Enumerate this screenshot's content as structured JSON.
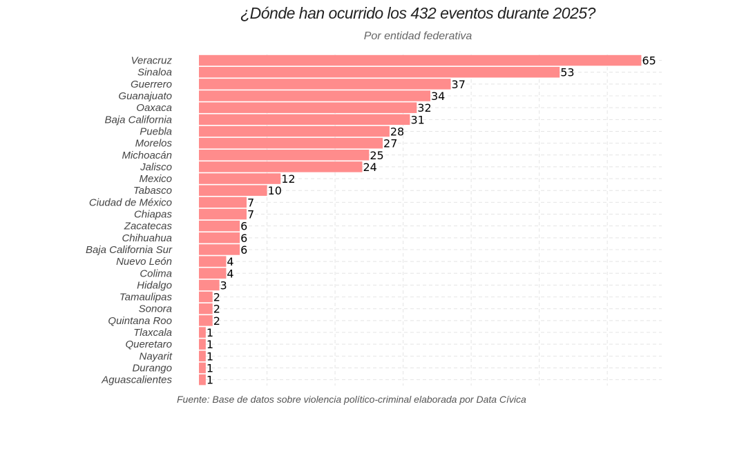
{
  "chart_data": {
    "type": "bar",
    "orientation": "horizontal",
    "title": "¿Dónde han ocurrido los 432 eventos durante 2025?",
    "subtitle": "Por entidad federativa",
    "caption": "Fuente: Base de datos sobre violencia político-criminal elaborada por Data Cívica",
    "categories": [
      "Veracruz",
      "Sinaloa",
      "Guerrero",
      "Guanajuato",
      "Oaxaca",
      "Baja California",
      "Puebla",
      "Morelos",
      "Michoacán",
      "Jalisco",
      "Mexico",
      "Tabasco",
      "Ciudad de México",
      "Chiapas",
      "Zacatecas",
      "Chihuahua",
      "Baja California Sur",
      "Nuevo León",
      "Colima",
      "Hidalgo",
      "Tamaulipas",
      "Sonora",
      "Quintana Roo",
      "Tlaxcala",
      "Queretaro",
      "Nayarit",
      "Durango",
      "Aguascalientes"
    ],
    "values": [
      65,
      53,
      37,
      34,
      32,
      31,
      28,
      27,
      25,
      24,
      12,
      10,
      7,
      7,
      6,
      6,
      6,
      4,
      4,
      3,
      2,
      2,
      2,
      1,
      1,
      1,
      1,
      1
    ],
    "xlim": [
      0,
      68
    ],
    "grid": true,
    "legend": "none",
    "bar_color": "#FF8C8C",
    "data_labels": true
  }
}
